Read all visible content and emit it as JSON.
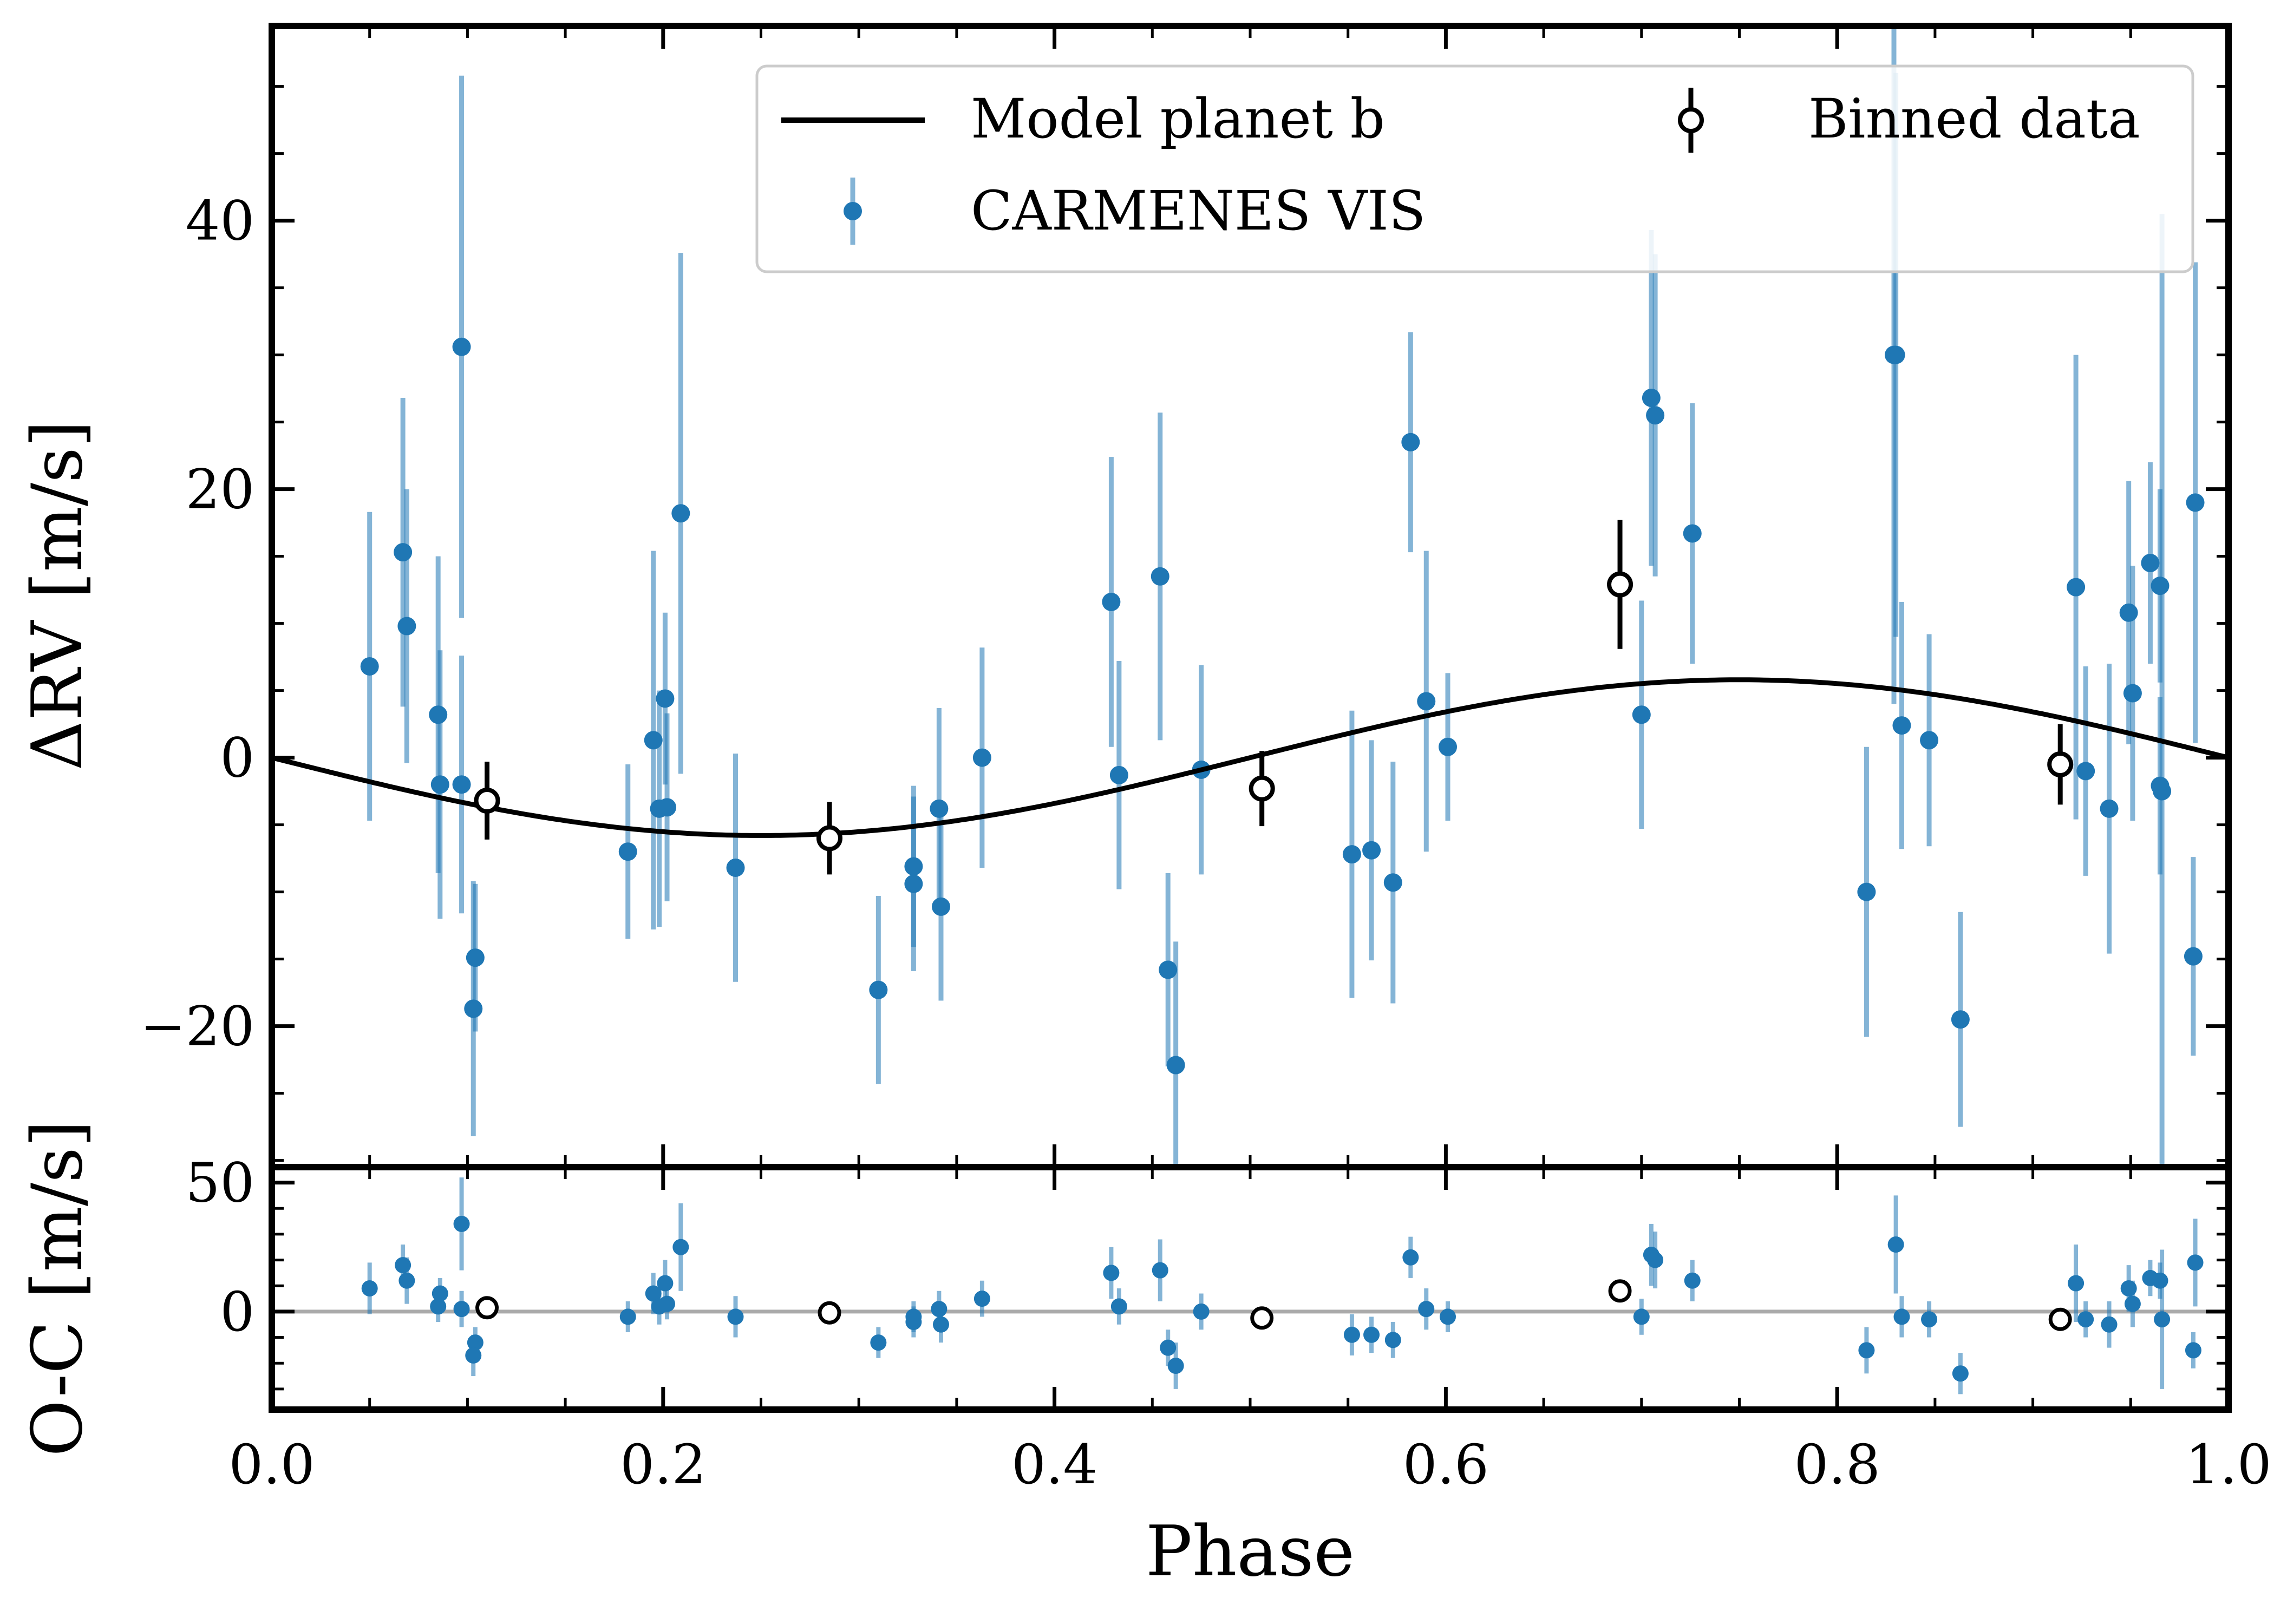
{
  "chart_data": {
    "type": "scatter",
    "title": "",
    "colors": {
      "data": "#1f77b4",
      "model": "#000000",
      "residual_zero": "#aaaaaa"
    },
    "xlabel": "Phase",
    "xlim": [
      0,
      1
    ],
    "xticks": [
      0,
      0.2,
      0.4,
      0.6,
      0.8,
      1
    ],
    "xtick_labels": [
      "0.0",
      "0.2",
      "0.4",
      "0.6",
      "0.8",
      "1.0"
    ],
    "top_panel": {
      "ylabel": "ΔRV [m/s]",
      "ylim": [
        -30.5,
        54.5
      ],
      "yticks": [
        -20,
        0,
        20,
        40
      ],
      "ytick_labels": [
        "−20",
        "0",
        "20",
        "40"
      ],
      "model": {
        "name": "Model planet b",
        "amplitude": 5.8,
        "phase_of_max": 0.75
      },
      "legend": {
        "position": "top-right",
        "entries": [
          {
            "label": "Model planet b",
            "kind": "line"
          },
          {
            "label": "CARMENES VIS",
            "kind": "errorpoint"
          },
          {
            "label": "Binned data",
            "kind": "open-circle"
          }
        ]
      },
      "series": [
        {
          "name": "CARMENES VIS",
          "points": [
            {
              "x": 0.05,
              "y": 6.8,
              "err": 11.5
            },
            {
              "x": 0.067,
              "y": 15.3,
              "err": 11.5
            },
            {
              "x": 0.069,
              "y": 9.8,
              "err": 10.2
            },
            {
              "x": 0.085,
              "y": 3.2,
              "err": 11.8
            },
            {
              "x": 0.086,
              "y": -2.0,
              "err": 10.0
            },
            {
              "x": 0.097,
              "y": 30.6,
              "err": 20.2
            },
            {
              "x": 0.097,
              "y": -2.0,
              "err": 9.6
            },
            {
              "x": 0.104,
              "y": -14.9,
              "err": 5.5
            },
            {
              "x": 0.103,
              "y": -18.7,
              "err": 9.5
            },
            {
              "x": 0.182,
              "y": -7.0,
              "err": 6.5
            },
            {
              "x": 0.195,
              "y": 1.3,
              "err": 14.1
            },
            {
              "x": 0.198,
              "y": -3.8,
              "err": 8.8
            },
            {
              "x": 0.202,
              "y": -3.7,
              "err": 7.0
            },
            {
              "x": 0.201,
              "y": 4.4,
              "err": 6.4
            },
            {
              "x": 0.209,
              "y": 18.2,
              "err": 19.4
            },
            {
              "x": 0.237,
              "y": -8.2,
              "err": 8.5
            },
            {
              "x": 0.31,
              "y": -17.3,
              "err": 7.0
            },
            {
              "x": 0.328,
              "y": -8.1,
              "err": 6.0
            },
            {
              "x": 0.328,
              "y": -9.4,
              "err": 6.5
            },
            {
              "x": 0.341,
              "y": -3.8,
              "err": 7.5
            },
            {
              "x": 0.342,
              "y": -11.1,
              "err": 7.0
            },
            {
              "x": 0.363,
              "y": 0.0,
              "err": 8.2
            },
            {
              "x": 0.429,
              "y": 11.6,
              "err": 10.8
            },
            {
              "x": 0.433,
              "y": -1.3,
              "err": 8.5
            },
            {
              "x": 0.454,
              "y": 13.5,
              "err": 12.2
            },
            {
              "x": 0.458,
              "y": -15.8,
              "err": 7.2
            },
            {
              "x": 0.462,
              "y": -22.9,
              "err": 9.2
            },
            {
              "x": 0.475,
              "y": -0.9,
              "err": 7.8
            },
            {
              "x": 0.552,
              "y": -7.2,
              "err": 10.7
            },
            {
              "x": 0.562,
              "y": -6.9,
              "err": 8.2
            },
            {
              "x": 0.573,
              "y": -9.3,
              "err": 9.0
            },
            {
              "x": 0.582,
              "y": 23.5,
              "err": 8.2
            },
            {
              "x": 0.59,
              "y": 4.2,
              "err": 11.2
            },
            {
              "x": 0.601,
              "y": 0.8,
              "err": 5.5
            },
            {
              "x": 0.7,
              "y": 3.2,
              "err": 8.5
            },
            {
              "x": 0.705,
              "y": 26.8,
              "err": 12.5
            },
            {
              "x": 0.707,
              "y": 25.5,
              "err": 12.0
            },
            {
              "x": 0.726,
              "y": 16.7,
              "err": 9.7
            },
            {
              "x": 0.815,
              "y": -10.0,
              "err": 10.8
            },
            {
              "x": 0.83,
              "y": 30.0,
              "err": 21.0
            },
            {
              "x": 0.833,
              "y": 2.4,
              "err": 9.2
            },
            {
              "x": 0.847,
              "y": 1.3,
              "err": 7.9
            },
            {
              "x": 0.863,
              "y": -19.5,
              "err": 8.0
            },
            {
              "x": 0.922,
              "y": 12.7,
              "err": 17.3
            },
            {
              "x": 0.927,
              "y": -1.0,
              "err": 7.8
            },
            {
              "x": 0.939,
              "y": -3.8,
              "err": 10.8
            },
            {
              "x": 0.949,
              "y": 10.8,
              "err": 9.8
            },
            {
              "x": 0.951,
              "y": 4.8,
              "err": 9.5
            },
            {
              "x": 0.96,
              "y": 14.5,
              "err": 7.5
            },
            {
              "x": 0.965,
              "y": 12.8,
              "err": 7.2
            },
            {
              "x": 0.965,
              "y": -2.1,
              "err": 6.6
            },
            {
              "x": 0.982,
              "y": -14.8,
              "err": 7.4
            },
            {
              "x": 0.983,
              "y": 19.0,
              "err": 17.9
            },
            {
              "x": 0.966,
              "y": -2.5,
              "err": 43.0
            },
            {
              "x": 0.829,
              "y": 30.0,
              "err": 26.0
            }
          ]
        },
        {
          "name": "Binned data",
          "points": [
            {
              "x": 0.11,
              "y": -3.2,
              "err": 2.9
            },
            {
              "x": 0.285,
              "y": -6.0,
              "err": 2.7
            },
            {
              "x": 0.506,
              "y": -2.3,
              "err": 2.8
            },
            {
              "x": 0.689,
              "y": 12.9,
              "err": 4.8
            },
            {
              "x": 0.914,
              "y": -0.5,
              "err": 3.0
            }
          ]
        }
      ]
    },
    "bottom_panel": {
      "ylabel": "O-C [m/s]",
      "ylim": [
        -38,
        56
      ],
      "yticks": [
        0,
        50
      ],
      "ytick_labels": [
        "0",
        "50"
      ],
      "zero_line": 0,
      "series": [
        {
          "name": "CARMENES VIS residuals",
          "points": [
            {
              "x": 0.05,
              "y": 9,
              "err": 10
            },
            {
              "x": 0.067,
              "y": 18,
              "err": 8
            },
            {
              "x": 0.069,
              "y": 12,
              "err": 9
            },
            {
              "x": 0.085,
              "y": 2,
              "err": 6
            },
            {
              "x": 0.086,
              "y": 7,
              "err": 6
            },
            {
              "x": 0.097,
              "y": 34,
              "err": 18
            },
            {
              "x": 0.097,
              "y": 1,
              "err": 7
            },
            {
              "x": 0.104,
              "y": -12,
              "err": 6
            },
            {
              "x": 0.103,
              "y": -17,
              "err": 8
            },
            {
              "x": 0.182,
              "y": -2,
              "err": 6
            },
            {
              "x": 0.195,
              "y": 7,
              "err": 8
            },
            {
              "x": 0.198,
              "y": 2,
              "err": 7
            },
            {
              "x": 0.202,
              "y": 3,
              "err": 6
            },
            {
              "x": 0.201,
              "y": 11,
              "err": 9
            },
            {
              "x": 0.209,
              "y": 25,
              "err": 17
            },
            {
              "x": 0.237,
              "y": -2,
              "err": 8
            },
            {
              "x": 0.31,
              "y": -12,
              "err": 6
            },
            {
              "x": 0.328,
              "y": -2,
              "err": 6
            },
            {
              "x": 0.328,
              "y": -4,
              "err": 6
            },
            {
              "x": 0.341,
              "y": 1,
              "err": 7
            },
            {
              "x": 0.342,
              "y": -5,
              "err": 7
            },
            {
              "x": 0.363,
              "y": 5,
              "err": 7
            },
            {
              "x": 0.429,
              "y": 15,
              "err": 10
            },
            {
              "x": 0.433,
              "y": 2,
              "err": 7
            },
            {
              "x": 0.454,
              "y": 16,
              "err": 12
            },
            {
              "x": 0.458,
              "y": -14,
              "err": 7
            },
            {
              "x": 0.462,
              "y": -21,
              "err": 9
            },
            {
              "x": 0.475,
              "y": 0,
              "err": 7
            },
            {
              "x": 0.552,
              "y": -9,
              "err": 8
            },
            {
              "x": 0.562,
              "y": -9,
              "err": 7
            },
            {
              "x": 0.573,
              "y": -11,
              "err": 7
            },
            {
              "x": 0.582,
              "y": 21,
              "err": 8
            },
            {
              "x": 0.59,
              "y": 1,
              "err": 8
            },
            {
              "x": 0.601,
              "y": -2,
              "err": 6
            },
            {
              "x": 0.7,
              "y": -2,
              "err": 7
            },
            {
              "x": 0.705,
              "y": 22,
              "err": 12
            },
            {
              "x": 0.707,
              "y": 20,
              "err": 11
            },
            {
              "x": 0.726,
              "y": 12,
              "err": 8
            },
            {
              "x": 0.815,
              "y": -15,
              "err": 9
            },
            {
              "x": 0.83,
              "y": 26,
              "err": 19
            },
            {
              "x": 0.833,
              "y": -2,
              "err": 8
            },
            {
              "x": 0.847,
              "y": -3,
              "err": 7
            },
            {
              "x": 0.863,
              "y": -24,
              "err": 8
            },
            {
              "x": 0.922,
              "y": 11,
              "err": 15
            },
            {
              "x": 0.927,
              "y": -3,
              "err": 7
            },
            {
              "x": 0.939,
              "y": -5,
              "err": 9
            },
            {
              "x": 0.949,
              "y": 9,
              "err": 9
            },
            {
              "x": 0.951,
              "y": 3,
              "err": 9
            },
            {
              "x": 0.96,
              "y": 13,
              "err": 7
            },
            {
              "x": 0.965,
              "y": 12,
              "err": 7
            },
            {
              "x": 0.966,
              "y": -3,
              "err": 27
            },
            {
              "x": 0.982,
              "y": -15,
              "err": 7
            },
            {
              "x": 0.983,
              "y": 19,
              "err": 17
            }
          ]
        },
        {
          "name": "Binned residuals",
          "points": [
            {
              "x": 0.11,
              "y": 1.5,
              "err": 0
            },
            {
              "x": 0.285,
              "y": -0.5,
              "err": 0
            },
            {
              "x": 0.506,
              "y": -2.5,
              "err": 0
            },
            {
              "x": 0.689,
              "y": 8,
              "err": 0
            },
            {
              "x": 0.914,
              "y": -3,
              "err": 0
            }
          ]
        }
      ]
    }
  }
}
